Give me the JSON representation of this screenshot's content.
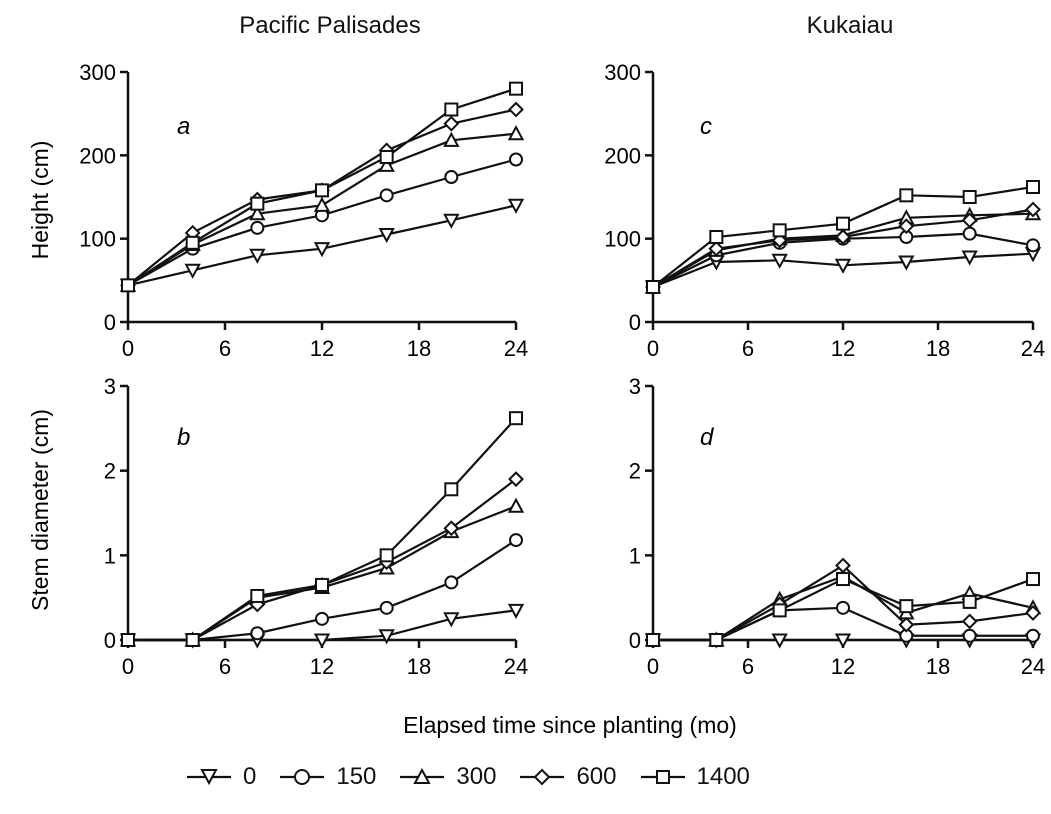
{
  "figure": {
    "shared_xlabel": "Elapsed time since planting (mo)",
    "legend": [
      "0",
      "150",
      "300",
      "600",
      "1400"
    ],
    "line_color": "#111111"
  },
  "chart_data": [
    {
      "type": "line",
      "panel": "a",
      "title": "Pacific Palisades",
      "xlabel": "",
      "ylabel": "Height (cm)",
      "x": [
        0,
        4,
        8,
        12,
        16,
        20,
        24
      ],
      "xticks": [
        0,
        6,
        12,
        18,
        24
      ],
      "xlim": [
        0,
        24
      ],
      "ylim": [
        0,
        300
      ],
      "yticks": [
        0,
        100,
        200,
        300
      ],
      "series": [
        {
          "name": "0",
          "marker": "triangle-down",
          "values": [
            44,
            62,
            80,
            88,
            105,
            122,
            140
          ]
        },
        {
          "name": "150",
          "marker": "circle",
          "values": [
            44,
            88,
            113,
            128,
            152,
            174,
            195
          ]
        },
        {
          "name": "300",
          "marker": "triangle-up",
          "values": [
            44,
            93,
            130,
            140,
            188,
            218,
            226
          ]
        },
        {
          "name": "600",
          "marker": "diamond",
          "values": [
            44,
            107,
            147,
            158,
            206,
            238,
            255
          ]
        },
        {
          "name": "1400",
          "marker": "square",
          "values": [
            44,
            95,
            142,
            158,
            198,
            255,
            280
          ]
        }
      ]
    },
    {
      "type": "line",
      "panel": "b",
      "title": "",
      "xlabel": "",
      "ylabel": "Stem diameter (cm)",
      "x": [
        0,
        4,
        8,
        12,
        16,
        20,
        24
      ],
      "xticks": [
        0,
        6,
        12,
        18,
        24
      ],
      "xlim": [
        0,
        24
      ],
      "ylim": [
        0,
        3
      ],
      "yticks": [
        0,
        1,
        2,
        3
      ],
      "series": [
        {
          "name": "0",
          "marker": "triangle-down",
          "values": [
            0,
            0,
            0,
            0,
            0.05,
            0.25,
            0.35
          ]
        },
        {
          "name": "150",
          "marker": "circle",
          "values": [
            0,
            0,
            0.08,
            0.25,
            0.38,
            0.68,
            1.18
          ]
        },
        {
          "name": "300",
          "marker": "triangle-up",
          "values": [
            0,
            0,
            0.5,
            0.62,
            0.85,
            1.28,
            1.58
          ]
        },
        {
          "name": "600",
          "marker": "diamond",
          "values": [
            0,
            0,
            0.42,
            0.65,
            0.92,
            1.32,
            1.9
          ]
        },
        {
          "name": "1400",
          "marker": "square",
          "values": [
            0,
            0,
            0.52,
            0.65,
            1.0,
            1.78,
            2.62
          ]
        }
      ]
    },
    {
      "type": "line",
      "panel": "c",
      "title": "Kukaiau",
      "xlabel": "",
      "ylabel": "",
      "x": [
        0,
        4,
        8,
        12,
        16,
        20,
        24
      ],
      "xticks": [
        0,
        6,
        12,
        18,
        24
      ],
      "xlim": [
        0,
        24
      ],
      "ylim": [
        0,
        300
      ],
      "yticks": [
        0,
        100,
        200,
        300
      ],
      "series": [
        {
          "name": "0",
          "marker": "triangle-down",
          "values": [
            42,
            72,
            74,
            68,
            72,
            78,
            82
          ]
        },
        {
          "name": "150",
          "marker": "circle",
          "values": [
            42,
            80,
            95,
            100,
            102,
            106,
            92
          ]
        },
        {
          "name": "300",
          "marker": "triangle-up",
          "values": [
            42,
            86,
            100,
            104,
            125,
            128,
            130
          ]
        },
        {
          "name": "600",
          "marker": "diamond",
          "values": [
            42,
            88,
            98,
            102,
            115,
            122,
            135
          ]
        },
        {
          "name": "1400",
          "marker": "square",
          "values": [
            42,
            102,
            110,
            118,
            152,
            150,
            162
          ]
        }
      ]
    },
    {
      "type": "line",
      "panel": "d",
      "title": "",
      "xlabel": "",
      "ylabel": "",
      "x": [
        0,
        4,
        8,
        12,
        16,
        20,
        24
      ],
      "xticks": [
        0,
        6,
        12,
        18,
        24
      ],
      "xlim": [
        0,
        24
      ],
      "ylim": [
        0,
        3
      ],
      "yticks": [
        0,
        1,
        2,
        3
      ],
      "series": [
        {
          "name": "0",
          "marker": "triangle-down",
          "values": [
            0,
            0,
            0,
            0,
            0,
            0,
            0
          ]
        },
        {
          "name": "150",
          "marker": "circle",
          "values": [
            0,
            0,
            0.35,
            0.38,
            0.05,
            0.05,
            0.05
          ]
        },
        {
          "name": "300",
          "marker": "triangle-up",
          "values": [
            0,
            0,
            0.48,
            0.75,
            0.32,
            0.55,
            0.38
          ]
        },
        {
          "name": "600",
          "marker": "diamond",
          "values": [
            0,
            0,
            0.42,
            0.88,
            0.18,
            0.22,
            0.32
          ]
        },
        {
          "name": "1400",
          "marker": "square",
          "values": [
            0,
            0,
            0.35,
            0.72,
            0.4,
            0.45,
            0.72
          ]
        }
      ]
    }
  ]
}
